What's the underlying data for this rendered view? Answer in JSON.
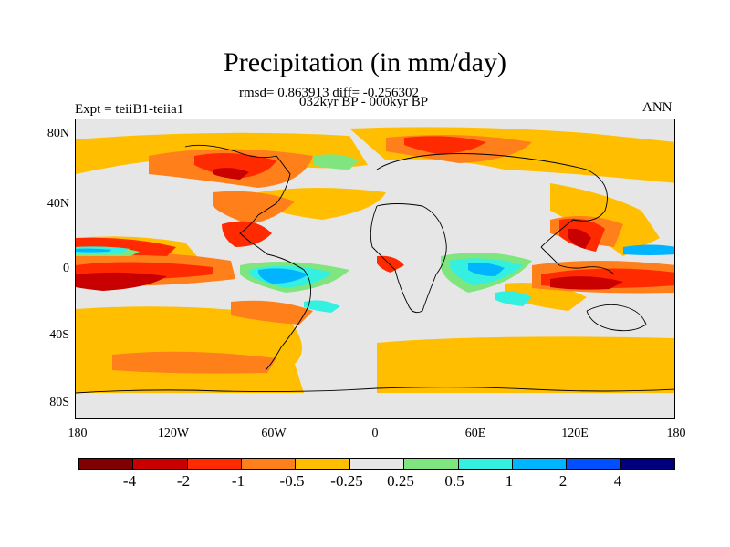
{
  "title": "Precipitation (in mm/day)",
  "stats_line": "rmsd= 0.863913 diff= -0.256302",
  "period_line": "032kyr BP - 000kyr BP",
  "experiment_label": "Expt = teiiB1-teiia1",
  "season_label": "ANN",
  "lat_ticks": [
    "80N",
    "40N",
    "0",
    "40S",
    "80S"
  ],
  "lon_ticks": [
    "180",
    "120W",
    "60W",
    "0",
    "60E",
    "120E",
    "180"
  ],
  "colorbar": {
    "colors": [
      "#800000",
      "#c80000",
      "#ff2a00",
      "#ff7f1a",
      "#ffbf00",
      "#e6e6e6",
      "#7fe67f",
      "#33f0e0",
      "#00b4ff",
      "#0050ff",
      "#00007f"
    ],
    "labels": [
      "-4",
      "-2",
      "-1",
      "-0.5",
      "-0.25",
      "0.25",
      "0.5",
      "1",
      "2",
      "4"
    ]
  },
  "map_background_color": "#e6e6e6"
}
